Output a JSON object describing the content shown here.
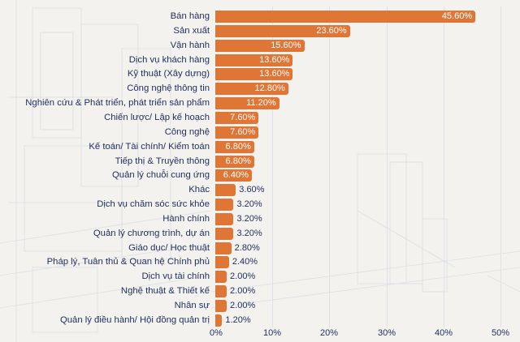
{
  "chart_data": {
    "type": "bar",
    "orientation": "horizontal",
    "title": "",
    "xlabel": "",
    "ylabel": "",
    "xlim": [
      0,
      50
    ],
    "grid": true,
    "legend": null,
    "bar_color": "#e07636",
    "text_color": "#1f2d5a",
    "background_color": "#f3f2ef",
    "categories": [
      "Bán hàng",
      "Sản xuất",
      "Vận hành",
      "Dịch vụ khách hàng",
      "Kỹ thuật (Xây dựng)",
      "Công nghệ thông tin",
      "Nghiên cứu & Phát triển, phát triển sản phẩm",
      "Chiến lược/ Lập kế hoạch",
      "Công nghệ",
      "Kế toán/ Tài chính/ Kiểm toán",
      "Tiếp thị & Truyền thông",
      "Quản lý chuỗi cung ứng",
      "Khác",
      "Dịch vụ chăm sóc sức khỏe",
      "Hành chính",
      "Quản lý chương trình, dự án",
      "Giáo dục/ Học thuật",
      "Pháp lý, Tuân thủ & Quan hệ Chính phủ",
      "Dịch vụ tài chính",
      "Nghệ thuật & Thiết kế",
      "Nhân sự",
      "Quản lý điều hành/ Hội đồng quản trị"
    ],
    "values": [
      45.6,
      23.6,
      15.6,
      13.6,
      13.6,
      12.8,
      11.2,
      7.6,
      7.6,
      6.8,
      6.8,
      6.4,
      3.6,
      3.2,
      3.2,
      3.2,
      2.8,
      2.4,
      2.0,
      2.0,
      2.0,
      1.2
    ],
    "value_labels": [
      "45.60%",
      "23.60%",
      "15.60%",
      "13.60%",
      "13.60%",
      "12.80%",
      "11.20%",
      "7.60%",
      "7.60%",
      "6.80%",
      "6.80%",
      "6.40%",
      "3.60%",
      "3.20%",
      "3.20%",
      "3.20%",
      "2.80%",
      "2.40%",
      "2.00%",
      "2.00%",
      "2.00%",
      "1.20%"
    ],
    "x_ticks": [
      0,
      10,
      20,
      30,
      40,
      50
    ],
    "x_tick_labels": [
      "0%",
      "10%",
      "20%",
      "30%",
      "40%",
      "50%"
    ]
  }
}
